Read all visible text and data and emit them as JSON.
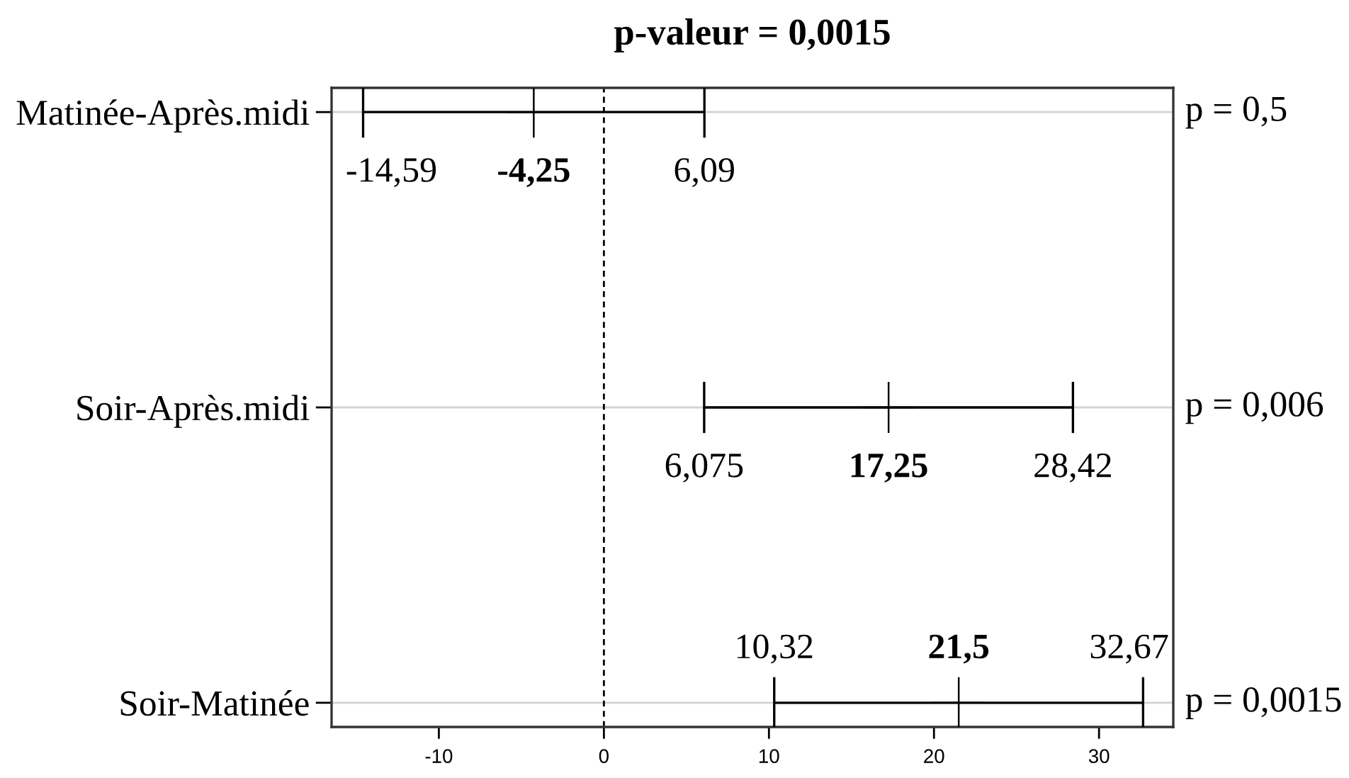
{
  "chart_data": {
    "type": "scatter",
    "orientation": "horizontal",
    "title": "p-valeur = 0,0015",
    "categories": [
      "Matinée-Après.midi",
      "Soir-Après.midi",
      "Soir-Matinée"
    ],
    "values": [
      -4.25,
      17.25,
      21.5
    ],
    "errors": [
      [
        -14.59,
        6.09
      ],
      [
        6.075,
        28.42
      ],
      [
        10.32,
        32.67
      ]
    ],
    "value_labels": [
      "-4,25",
      "17,25",
      "21,5"
    ],
    "color": "#000000",
    "xlim": [
      -16.5,
      34.5
    ],
    "xticks": [
      -10,
      0,
      10,
      20,
      30
    ],
    "grid": "y",
    "ref_lines": [
      {
        "axis": "x",
        "value": 0,
        "color": "#000000",
        "line_style": "dashed"
      }
    ],
    "annotations": [
      {
        "text": "-14,59",
        "x": -14.59,
        "y": "Matinée-Après.midi"
      },
      {
        "text": "6,09",
        "x": 6.09,
        "y": "Matinée-Après.midi"
      },
      {
        "text": "6,075",
        "x": 6.075,
        "y": "Soir-Après.midi"
      },
      {
        "text": "28,42",
        "x": 28.42,
        "y": "Soir-Après.midi"
      },
      {
        "text": "10,32",
        "x": 10.32,
        "y": "Soir-Matinée"
      },
      {
        "text": "32,67",
        "x": 32.67,
        "y": "Soir-Matinée"
      },
      "p = 0,5",
      "p = 0,006",
      "p = 0,0015"
    ]
  }
}
